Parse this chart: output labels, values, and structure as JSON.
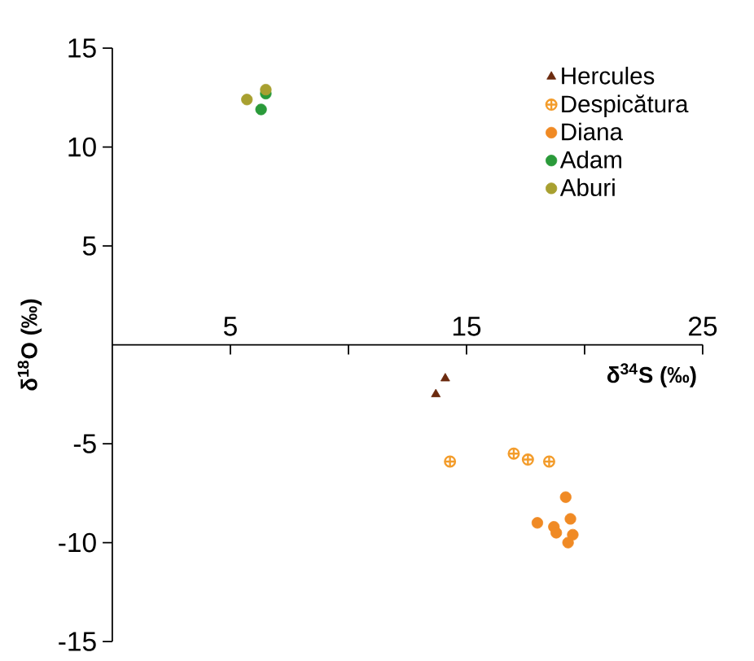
{
  "chart_data": {
    "type": "scatter",
    "xlabel": "δ$^{34}$S (‰)",
    "ylabel": "δ$^{18}$O (‰)",
    "xlim": [
      0,
      25
    ],
    "ylim": [
      -15,
      15
    ],
    "xticks": [
      5,
      {
        "value": 10,
        "label": null
      },
      15,
      {
        "value": 20,
        "label": null
      },
      25
    ],
    "yticks": [
      -15,
      -10,
      -5,
      5,
      10,
      15
    ],
    "legend": "top right",
    "grid": false,
    "series": [
      {
        "name": "Hercules",
        "color": "#6b2a0e",
        "marker": "triangle",
        "x": [
          14.1,
          13.7
        ],
        "values": [
          -1.7,
          -2.5
        ]
      },
      {
        "name": "Despicătura",
        "color": "#f39c2b",
        "marker": "cross",
        "x": [
          14.3,
          17.0,
          17.6,
          18.5
        ],
        "values": [
          -5.9,
          -5.5,
          -5.8,
          -5.9
        ]
      },
      {
        "name": "Diana",
        "color": "#f08a24",
        "marker": "circle",
        "x": [
          19.2,
          18.0,
          18.7,
          19.4,
          18.8,
          19.5,
          19.3
        ],
        "values": [
          -7.7,
          -9.0,
          -9.2,
          -8.8,
          -9.5,
          -9.6,
          -10.0
        ]
      },
      {
        "name": "Adam",
        "color": "#2a9a3a",
        "marker": "circle",
        "x": [
          6.5,
          6.3
        ],
        "values": [
          12.7,
          11.9
        ]
      },
      {
        "name": "Aburi",
        "color": "#a8a030",
        "marker": "circle",
        "x": [
          5.7,
          6.5
        ],
        "values": [
          12.4,
          12.9
        ]
      }
    ]
  }
}
